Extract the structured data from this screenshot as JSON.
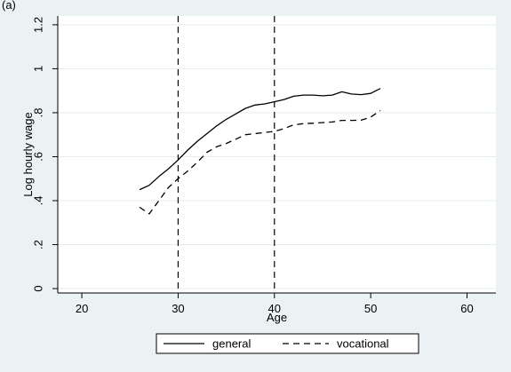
{
  "panel_label": "(a)",
  "chart_data": {
    "type": "line",
    "title": "",
    "xlabel": "Age",
    "ylabel": "Log hourly wage",
    "xlim": [
      17.5,
      63
    ],
    "ylim": [
      -0.02,
      1.24
    ],
    "xticks": [
      20,
      30,
      40,
      50,
      60
    ],
    "yticks": [
      0,
      0.2,
      0.4,
      0.6,
      0.8,
      1.0,
      1.2
    ],
    "ytick_labels": [
      "0",
      ".2",
      ".4",
      ".6",
      ".8",
      "1",
      "1.2"
    ],
    "grid": "horizontal",
    "legend_position": "bottom",
    "vertical_lines": [
      30,
      40
    ],
    "series": [
      {
        "name": "general",
        "style": "solid",
        "x": [
          26,
          27,
          28,
          29,
          30,
          31,
          32,
          33,
          34,
          35,
          36,
          37,
          38,
          39,
          40,
          41,
          42,
          43,
          44,
          45,
          46,
          47,
          48,
          49,
          50,
          51
        ],
        "y": [
          0.45,
          0.47,
          0.51,
          0.545,
          0.585,
          0.63,
          0.67,
          0.705,
          0.74,
          0.77,
          0.795,
          0.82,
          0.835,
          0.84,
          0.85,
          0.86,
          0.875,
          0.88,
          0.88,
          0.877,
          0.88,
          0.895,
          0.885,
          0.882,
          0.888,
          0.91
        ]
      },
      {
        "name": "vocational",
        "style": "dashed",
        "x": [
          26,
          27,
          28,
          29,
          30,
          31,
          32,
          33,
          34,
          35,
          36,
          37,
          38,
          39,
          40,
          41,
          42,
          43,
          44,
          45,
          46,
          47,
          48,
          49,
          50,
          51
        ],
        "y": [
          0.37,
          0.34,
          0.4,
          0.46,
          0.5,
          0.535,
          0.575,
          0.62,
          0.645,
          0.66,
          0.68,
          0.7,
          0.705,
          0.71,
          0.715,
          0.728,
          0.745,
          0.75,
          0.752,
          0.755,
          0.758,
          0.765,
          0.765,
          0.766,
          0.78,
          0.81
        ]
      }
    ]
  }
}
